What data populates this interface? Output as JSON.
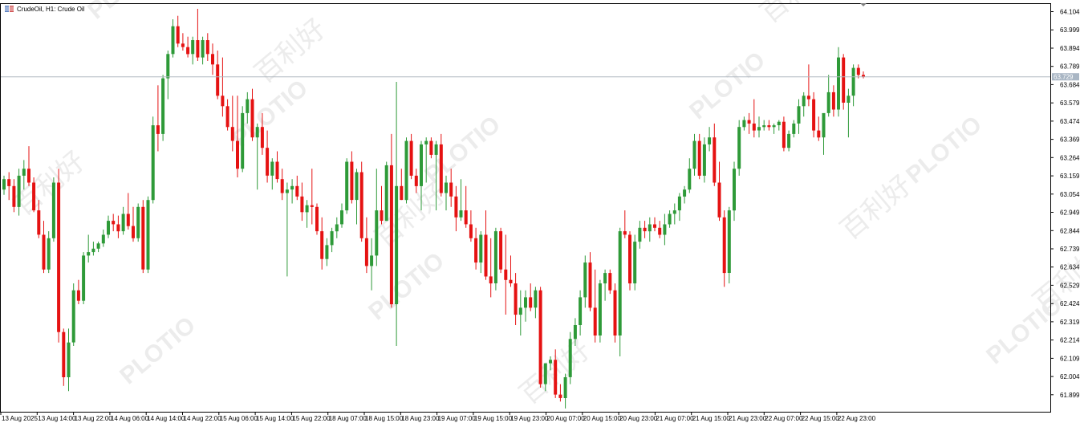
{
  "header": {
    "symbol_title": "CrudeOil, H1:  Crude Oil",
    "symbol_icon": "chart-window-icon"
  },
  "watermark": {
    "brand": "PLOTIO",
    "brand_cn": "百利好"
  },
  "current_price": {
    "label": "63.729",
    "value": 63.729
  },
  "colors": {
    "bull": "#2e9a38",
    "bear": "#e51212",
    "grid_border": "#000000",
    "price_line": "#b0b8c0",
    "price_badge": "#a9b6c4",
    "axis_text": "#000000"
  },
  "chart_data": {
    "type": "candlestick",
    "title": "CrudeOil, H1:  Crude Oil",
    "ylim": [
      61.82,
      64.14
    ],
    "grid": false,
    "y_ticks": [
      "64.104",
      "63.999",
      "63.894",
      "63.789",
      "63.684",
      "63.579",
      "63.474",
      "63.369",
      "63.264",
      "63.159",
      "63.054",
      "62.949",
      "62.844",
      "62.739",
      "62.634",
      "62.529",
      "62.424",
      "62.319",
      "62.214",
      "62.109",
      "62.004",
      "61.899"
    ],
    "x_labels": [
      "13 Aug 2025",
      "13 Aug 14:00",
      "13 Aug 22:00",
      "14 Aug 06:00",
      "14 Aug 14:00",
      "14 Aug 22:00",
      "15 Aug 06:00",
      "15 Aug 14:00",
      "15 Aug 22:00",
      "18 Aug 07:00",
      "18 Aug 15:00",
      "18 Aug 23:00",
      "19 Aug 07:00",
      "19 Aug 15:00",
      "19 Aug 23:00",
      "20 Aug 07:00",
      "20 Aug 15:00",
      "20 Aug 23:00",
      "21 Aug 07:00",
      "21 Aug 15:00",
      "21 Aug 23:00",
      "22 Aug 07:00",
      "22 Aug 15:00",
      "22 Aug 23:00"
    ],
    "candles": [
      [
        63.08,
        63.16,
        63.05,
        63.14
      ],
      [
        63.14,
        63.18,
        63.02,
        63.1
      ],
      [
        63.1,
        63.14,
        62.95,
        62.98
      ],
      [
        62.98,
        63.2,
        62.93,
        63.16
      ],
      [
        63.16,
        63.25,
        63.08,
        63.2
      ],
      [
        63.2,
        63.33,
        63.1,
        63.12
      ],
      [
        63.12,
        63.15,
        62.95,
        62.96
      ],
      [
        62.96,
        63.02,
        62.8,
        62.82
      ],
      [
        62.82,
        62.9,
        62.6,
        62.62
      ],
      [
        62.62,
        62.84,
        62.6,
        62.8
      ],
      [
        62.8,
        63.15,
        62.78,
        63.12
      ],
      [
        63.12,
        63.2,
        62.2,
        62.26
      ],
      [
        62.26,
        62.28,
        61.95,
        62.0
      ],
      [
        62.0,
        62.28,
        61.92,
        62.2
      ],
      [
        62.2,
        62.54,
        62.18,
        62.5
      ],
      [
        62.5,
        62.56,
        62.42,
        62.44
      ],
      [
        62.44,
        62.72,
        62.42,
        62.7
      ],
      [
        62.7,
        62.82,
        62.66,
        62.72
      ],
      [
        62.72,
        62.78,
        62.7,
        62.74
      ],
      [
        62.74,
        62.78,
        62.72,
        62.77
      ],
      [
        62.77,
        62.85,
        62.75,
        62.82
      ],
      [
        62.82,
        62.93,
        62.8,
        62.9
      ],
      [
        62.9,
        62.94,
        62.84,
        62.88
      ],
      [
        62.88,
        62.93,
        62.8,
        62.84
      ],
      [
        62.84,
        62.98,
        62.82,
        62.94
      ],
      [
        62.94,
        63.06,
        62.85,
        62.87
      ],
      [
        62.87,
        62.98,
        62.78,
        62.8
      ],
      [
        62.8,
        63.0,
        62.78,
        62.98
      ],
      [
        62.98,
        63.02,
        62.6,
        62.62
      ],
      [
        62.62,
        63.04,
        62.6,
        63.02
      ],
      [
        63.02,
        63.5,
        63.0,
        63.45
      ],
      [
        63.45,
        63.68,
        63.3,
        63.4
      ],
      [
        63.4,
        63.74,
        63.36,
        63.72
      ],
      [
        63.72,
        63.88,
        63.6,
        63.86
      ],
      [
        63.86,
        64.06,
        63.84,
        64.02
      ],
      [
        64.02,
        64.08,
        63.9,
        63.92
      ],
      [
        63.92,
        63.98,
        63.88,
        63.9
      ],
      [
        63.9,
        63.96,
        63.84,
        63.86
      ],
      [
        63.86,
        63.96,
        63.8,
        63.94
      ],
      [
        63.94,
        64.12,
        63.82,
        63.84
      ],
      [
        63.84,
        63.96,
        63.8,
        63.94
      ],
      [
        63.94,
        63.98,
        63.82,
        63.86
      ],
      [
        63.86,
        63.92,
        63.74,
        63.8
      ],
      [
        63.8,
        63.88,
        63.6,
        63.62
      ],
      [
        63.62,
        63.84,
        63.5,
        63.56
      ],
      [
        63.56,
        63.6,
        63.42,
        63.44
      ],
      [
        63.44,
        63.62,
        63.3,
        63.36
      ],
      [
        63.36,
        63.62,
        63.15,
        63.2
      ],
      [
        63.2,
        63.56,
        63.18,
        63.52
      ],
      [
        63.52,
        63.64,
        63.46,
        63.6
      ],
      [
        63.6,
        63.66,
        63.36,
        63.38
      ],
      [
        63.38,
        63.46,
        63.08,
        63.44
      ],
      [
        63.44,
        63.52,
        63.28,
        63.32
      ],
      [
        63.32,
        63.42,
        63.12,
        63.16
      ],
      [
        63.16,
        63.26,
        63.08,
        63.24
      ],
      [
        63.24,
        63.3,
        63.12,
        63.14
      ],
      [
        63.14,
        63.2,
        63.02,
        63.06
      ],
      [
        63.06,
        63.12,
        62.58,
        63.08
      ],
      [
        63.08,
        63.14,
        63.0,
        63.1
      ],
      [
        63.1,
        63.16,
        63.02,
        63.04
      ],
      [
        63.04,
        63.12,
        62.9,
        62.95
      ],
      [
        62.95,
        63.02,
        62.86,
        62.99
      ],
      [
        62.99,
        63.2,
        62.88,
        62.98
      ],
      [
        62.98,
        63.0,
        62.82,
        62.84
      ],
      [
        62.84,
        62.92,
        62.62,
        62.68
      ],
      [
        62.68,
        62.8,
        62.64,
        62.76
      ],
      [
        62.76,
        62.86,
        62.72,
        62.84
      ],
      [
        62.84,
        62.92,
        62.8,
        62.88
      ],
      [
        62.88,
        63.0,
        62.86,
        62.96
      ],
      [
        62.96,
        63.26,
        62.94,
        63.24
      ],
      [
        63.24,
        63.3,
        63.0,
        63.02
      ],
      [
        63.02,
        63.2,
        62.88,
        63.18
      ],
      [
        63.18,
        63.24,
        62.78,
        62.8
      ],
      [
        62.8,
        62.92,
        62.6,
        62.64
      ],
      [
        62.64,
        62.8,
        62.5,
        62.7
      ],
      [
        62.7,
        63.2,
        62.64,
        62.96
      ],
      [
        62.96,
        63.1,
        62.88,
        62.9
      ],
      [
        62.9,
        63.24,
        62.9,
        63.22
      ],
      [
        63.22,
        63.4,
        62.4,
        62.42
      ],
      [
        62.42,
        63.7,
        62.18,
        63.1
      ],
      [
        63.1,
        63.2,
        63.02,
        63.02
      ],
      [
        63.02,
        63.38,
        63.0,
        63.36
      ],
      [
        63.36,
        63.4,
        63.14,
        63.16
      ],
      [
        63.16,
        63.2,
        63.06,
        63.1
      ],
      [
        63.1,
        63.36,
        62.96,
        63.34
      ],
      [
        63.34,
        63.38,
        63.12,
        63.36
      ],
      [
        63.36,
        63.38,
        63.26,
        63.28
      ],
      [
        63.28,
        63.36,
        62.96,
        63.34
      ],
      [
        63.34,
        63.4,
        63.04,
        63.06
      ],
      [
        63.06,
        63.16,
        62.96,
        63.12
      ],
      [
        63.12,
        63.2,
        62.98,
        63.04
      ],
      [
        63.04,
        63.1,
        62.84,
        62.92
      ],
      [
        62.92,
        63.14,
        62.9,
        62.96
      ],
      [
        62.96,
        63.1,
        62.86,
        62.88
      ],
      [
        62.88,
        62.96,
        62.78,
        62.8
      ],
      [
        62.8,
        62.86,
        62.62,
        62.66
      ],
      [
        62.66,
        62.84,
        62.6,
        62.82
      ],
      [
        62.82,
        62.96,
        62.56,
        62.58
      ],
      [
        62.58,
        62.8,
        62.46,
        62.54
      ],
      [
        62.54,
        62.86,
        62.5,
        62.84
      ],
      [
        62.84,
        62.86,
        62.6,
        62.62
      ],
      [
        62.62,
        62.82,
        62.36,
        62.56
      ],
      [
        62.56,
        62.7,
        62.52,
        62.54
      ],
      [
        62.54,
        62.6,
        62.3,
        62.36
      ],
      [
        62.36,
        62.5,
        62.24,
        62.4
      ],
      [
        62.4,
        62.5,
        62.32,
        62.46
      ],
      [
        62.46,
        62.54,
        62.38,
        62.4
      ],
      [
        62.4,
        62.52,
        62.34,
        62.5
      ],
      [
        62.5,
        62.52,
        61.94,
        61.96
      ],
      [
        61.96,
        62.08,
        61.92,
        62.08
      ],
      [
        62.08,
        62.12,
        62.04,
        62.1
      ],
      [
        62.1,
        62.16,
        61.88,
        61.9
      ],
      [
        61.9,
        61.96,
        61.86,
        61.88
      ],
      [
        61.88,
        62.02,
        61.82,
        62.0
      ],
      [
        62.0,
        62.26,
        61.96,
        62.22
      ],
      [
        62.22,
        62.34,
        62.18,
        62.3
      ],
      [
        62.3,
        62.5,
        62.24,
        62.46
      ],
      [
        62.46,
        62.7,
        62.4,
        62.66
      ],
      [
        62.66,
        62.72,
        62.38,
        62.4
      ],
      [
        62.4,
        62.62,
        62.2,
        62.24
      ],
      [
        62.24,
        62.56,
        62.2,
        62.54
      ],
      [
        62.54,
        62.62,
        62.44,
        62.6
      ],
      [
        62.6,
        62.62,
        62.48,
        62.5
      ],
      [
        62.5,
        62.54,
        62.2,
        62.24
      ],
      [
        62.24,
        62.86,
        62.12,
        62.84
      ],
      [
        62.84,
        62.96,
        62.8,
        62.82
      ],
      [
        62.82,
        62.84,
        62.5,
        62.54
      ],
      [
        62.54,
        62.82,
        62.5,
        62.78
      ],
      [
        62.78,
        62.9,
        62.74,
        62.86
      ],
      [
        62.86,
        62.9,
        62.8,
        62.84
      ],
      [
        62.84,
        62.92,
        62.78,
        62.88
      ],
      [
        62.88,
        62.92,
        62.84,
        62.86
      ],
      [
        62.86,
        62.9,
        62.8,
        62.82
      ],
      [
        62.82,
        62.94,
        62.76,
        62.88
      ],
      [
        62.88,
        62.96,
        62.86,
        62.94
      ],
      [
        62.94,
        63.0,
        62.88,
        62.96
      ],
      [
        62.96,
        63.06,
        62.9,
        63.04
      ],
      [
        63.04,
        63.1,
        63.0,
        63.08
      ],
      [
        63.08,
        63.26,
        63.06,
        63.2
      ],
      [
        63.2,
        63.4,
        63.16,
        63.36
      ],
      [
        63.36,
        63.4,
        63.14,
        63.16
      ],
      [
        63.16,
        63.38,
        63.12,
        63.34
      ],
      [
        63.34,
        63.44,
        63.3,
        63.38
      ],
      [
        63.38,
        63.46,
        63.1,
        63.12
      ],
      [
        63.12,
        63.24,
        62.9,
        62.92
      ],
      [
        62.92,
        62.96,
        62.52,
        62.6
      ],
      [
        62.6,
        62.98,
        62.54,
        62.96
      ],
      [
        62.96,
        63.24,
        62.9,
        63.2
      ],
      [
        63.2,
        63.48,
        63.16,
        63.44
      ],
      [
        63.44,
        63.5,
        63.42,
        63.48
      ],
      [
        63.48,
        63.52,
        63.4,
        63.46
      ],
      [
        63.46,
        63.6,
        63.38,
        63.42
      ],
      [
        63.42,
        63.5,
        63.38,
        63.44
      ],
      [
        63.44,
        63.48,
        63.42,
        63.45
      ],
      [
        63.45,
        63.48,
        63.42,
        63.44
      ],
      [
        63.44,
        63.46,
        63.4,
        63.45
      ],
      [
        63.45,
        63.48,
        63.42,
        63.47
      ],
      [
        63.47,
        63.5,
        63.3,
        63.32
      ],
      [
        63.32,
        63.42,
        63.3,
        63.4
      ],
      [
        63.4,
        63.48,
        63.38,
        63.46
      ],
      [
        63.46,
        63.6,
        63.4,
        63.56
      ],
      [
        63.56,
        63.64,
        63.5,
        63.62
      ],
      [
        63.62,
        63.8,
        63.56,
        63.6
      ],
      [
        63.6,
        63.64,
        63.38,
        63.42
      ],
      [
        63.42,
        63.5,
        63.36,
        63.38
      ],
      [
        63.38,
        63.5,
        63.28,
        63.52
      ],
      [
        63.52,
        63.74,
        63.5,
        63.64
      ],
      [
        63.64,
        63.68,
        63.5,
        63.54
      ],
      [
        63.54,
        63.9,
        63.5,
        63.84
      ],
      [
        63.84,
        63.86,
        63.54,
        63.58
      ],
      [
        63.58,
        63.66,
        63.38,
        63.62
      ],
      [
        63.62,
        63.8,
        63.56,
        63.78
      ],
      [
        63.78,
        63.8,
        63.72,
        63.74
      ],
      [
        63.74,
        63.76,
        63.72,
        63.73
      ]
    ]
  }
}
